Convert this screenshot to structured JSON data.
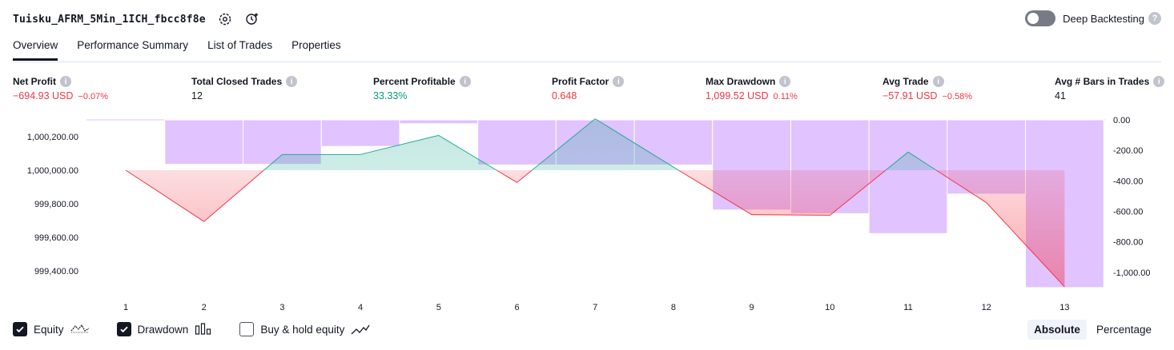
{
  "header": {
    "title": "Tuisku_AFRM_5Min_1ICH_fbcc8f8e",
    "deep_backtesting_label": "Deep Backtesting",
    "deep_backtesting_enabled": false
  },
  "tabs": [
    {
      "label": "Overview",
      "active": true
    },
    {
      "label": "Performance Summary",
      "active": false
    },
    {
      "label": "List of Trades",
      "active": false
    },
    {
      "label": "Properties",
      "active": false
    }
  ],
  "metrics": [
    {
      "label": "Net Profit",
      "value": "−694.93 USD",
      "pct": "−0.07%",
      "color": "red"
    },
    {
      "label": "Total Closed Trades",
      "value": "12",
      "pct": "",
      "color": "dark"
    },
    {
      "label": "Percent Profitable",
      "value": "33.33%",
      "pct": "",
      "color": "green"
    },
    {
      "label": "Profit Factor",
      "value": "0.648",
      "pct": "",
      "color": "red"
    },
    {
      "label": "Max Drawdown",
      "value": "1,099.52 USD",
      "pct": "0.11%",
      "color": "red"
    },
    {
      "label": "Avg Trade",
      "value": "−57.91 USD",
      "pct": "−0.58%",
      "color": "red"
    },
    {
      "label": "Avg # Bars in Trades",
      "value": "41",
      "pct": "",
      "color": "dark"
    }
  ],
  "chart_data": {
    "type": "line",
    "categories": [
      "1",
      "2",
      "3",
      "4",
      "5",
      "6",
      "7",
      "8",
      "9",
      "10",
      "11",
      "12",
      "13"
    ],
    "equity_baseline": 1000000,
    "series": [
      {
        "name": "Equity",
        "axis": "left",
        "values": [
          1000000.0,
          999694.2,
          1000093.7,
          1000093.7,
          1000207.6,
          999926.9,
          1000306.5,
          1000018.6,
          999735.4,
          999731.4,
          1000108.1,
          999807.0,
          999305.1
        ]
      },
      {
        "name": "Drawdown",
        "axis": "right",
        "type": "bar",
        "values": [
          0.0,
          -291.5,
          -291.5,
          -173.7,
          -25.0,
          -295.2,
          -295.2,
          -295.2,
          -590.8,
          -614.7,
          -745.1,
          -486.4,
          -1099.5
        ]
      }
    ],
    "y_left_ticks": [
      "1,000,200.00",
      "1,000,000.00",
      "999,800.00",
      "999,600.00",
      "999,400.00"
    ],
    "y_left_range": [
      999300,
      1000300
    ],
    "y_right_ticks": [
      "0.00",
      "-200.00",
      "-400.00",
      "-600.00",
      "-800.00",
      "-1,000.00"
    ],
    "y_right_range": [
      -1100,
      0
    ],
    "colors": {
      "profit": "#22ab94",
      "loss": "#f23645",
      "drawdown": "#e1c3ff",
      "drawdown_border": "#ffffff"
    }
  },
  "legend": [
    {
      "label": "Equity",
      "checked": true,
      "icon": "equity-line-icon"
    },
    {
      "label": "Drawdown",
      "checked": true,
      "icon": "drawdown-bars-icon"
    },
    {
      "label": "Buy & hold equity",
      "checked": false,
      "icon": "buy-hold-line-icon"
    }
  ],
  "modes": [
    {
      "label": "Absolute",
      "active": true
    },
    {
      "label": "Percentage",
      "active": false
    }
  ]
}
